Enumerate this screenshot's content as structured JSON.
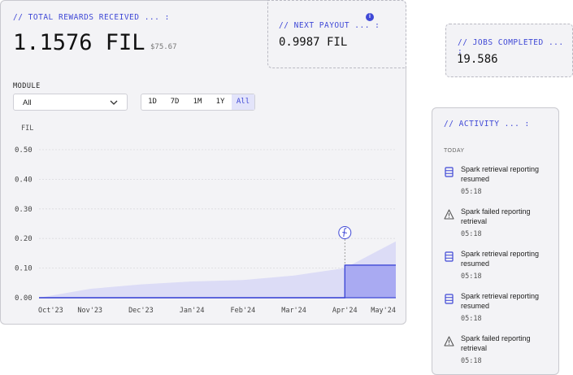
{
  "rewards": {
    "label": "// TOTAL REWARDS RECEIVED ... :",
    "value": "1.1576 FIL",
    "usd": "$75.67"
  },
  "payout": {
    "label": "// NEXT PAYOUT ... :",
    "value": "0.9987 FIL",
    "info_icon": "info-icon"
  },
  "jobs": {
    "label": "// JOBS COMPLETED ... :",
    "value": "19.586"
  },
  "module": {
    "label": "MODULE",
    "selected": "All"
  },
  "ranges": [
    {
      "label": "1D",
      "active": false
    },
    {
      "label": "7D",
      "active": false
    },
    {
      "label": "1M",
      "active": false
    },
    {
      "label": "1Y",
      "active": false
    },
    {
      "label": "All",
      "active": true
    }
  ],
  "chart_data": {
    "type": "area",
    "ylabel": "FIL",
    "ylim": [
      0,
      0.5
    ],
    "y_ticks": [
      "0.50",
      "0.40",
      "0.30",
      "0.20",
      "0.10",
      "0.00"
    ],
    "x_ticks": [
      "Oct'23",
      "Nov'23",
      "Dec'23",
      "Jan'24",
      "Feb'24",
      "Mar'24",
      "Apr'24",
      "May'24"
    ],
    "grid": true,
    "series": [
      {
        "role": "total-rewards",
        "color": "#dcdcf6",
        "x": [
          "Oct'23",
          "Nov'23",
          "Dec'23",
          "Jan'24",
          "Feb'24",
          "Mar'24",
          "Apr'24",
          "May'24"
        ],
        "values": [
          0.0,
          0.03,
          0.045,
          0.055,
          0.06,
          0.075,
          0.1,
          0.19
        ]
      },
      {
        "role": "payout",
        "color": "#a9aaf2",
        "x": [
          "Oct'23",
          "Nov'23",
          "Dec'23",
          "Jan'24",
          "Feb'24",
          "Mar'24",
          "Apr'24",
          "May'24"
        ],
        "values": [
          0.0,
          0.0,
          0.0,
          0.0,
          0.0,
          0.0,
          0.11,
          0.11
        ]
      }
    ],
    "marker": {
      "x": "Apr'24",
      "icon": "filecoin-icon"
    },
    "accent": "#3f48d6"
  },
  "activity": {
    "label": "// ACTIVITY ... :",
    "section": "TODAY",
    "items": [
      {
        "icon": "server-icon",
        "title": "Spark retrieval reporting resumed",
        "time": "05:18"
      },
      {
        "icon": "warning-icon",
        "title": "Spark failed reporting retrieval",
        "time": "05:18"
      },
      {
        "icon": "server-icon",
        "title": "Spark retrieval reporting resumed",
        "time": "05:18"
      },
      {
        "icon": "server-icon",
        "title": "Spark retrieval reporting resumed",
        "time": "05:18"
      },
      {
        "icon": "warning-icon",
        "title": "Spark failed reporting retrieval",
        "time": "05:18"
      }
    ]
  }
}
